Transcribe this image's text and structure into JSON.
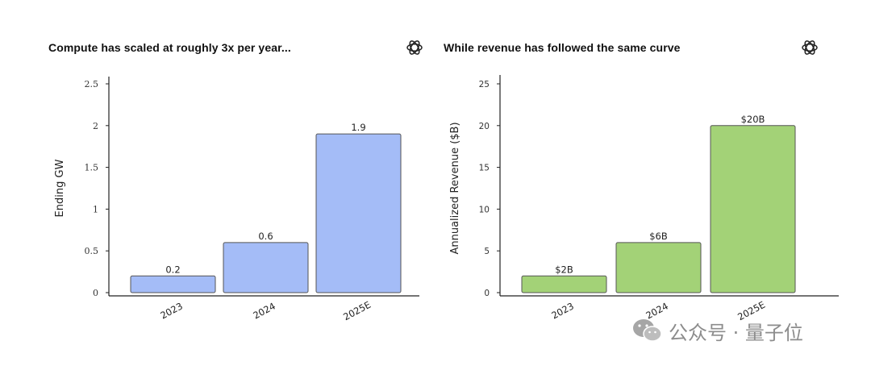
{
  "chart_data": [
    {
      "type": "bar",
      "title": "Compute has scaled at roughly 3x per year...",
      "xlabel": "",
      "ylabel": "Ending GW",
      "categories": [
        "2023",
        "2024",
        "2025E"
      ],
      "values": [
        0.2,
        0.6,
        1.9
      ],
      "data_labels": [
        "0.2",
        "0.6",
        "1.9"
      ],
      "ylim": [
        0,
        2.5
      ],
      "yticks": [
        0,
        0.5,
        1,
        1.5,
        2,
        2.5
      ],
      "ytick_labels": [
        "0",
        "0.5",
        "1",
        "1.5",
        "2",
        "2.5"
      ],
      "bar_color": "#a4bcf7",
      "bar_edge_color": "#555555",
      "grid": false,
      "legend": "none"
    },
    {
      "type": "bar",
      "title": "While revenue has followed the same curve",
      "xlabel": "",
      "ylabel": "Annualized Revenue ($B)",
      "categories": [
        "2023",
        "2024",
        "2025E"
      ],
      "values": [
        2,
        6,
        20
      ],
      "data_labels": [
        "$2B",
        "$6B",
        "$20B"
      ],
      "ylim": [
        0,
        25
      ],
      "yticks": [
        0,
        5,
        10,
        15,
        20,
        25
      ],
      "ytick_labels": [
        "0",
        "5",
        "10",
        "15",
        "20",
        "25"
      ],
      "bar_color": "#a3d277",
      "bar_edge_color": "#555555",
      "grid": false,
      "legend": "none"
    }
  ],
  "logo_icon": "openai-logo-icon",
  "watermark": {
    "icon": "wechat-icon",
    "text": "公众号 · 量子位"
  }
}
